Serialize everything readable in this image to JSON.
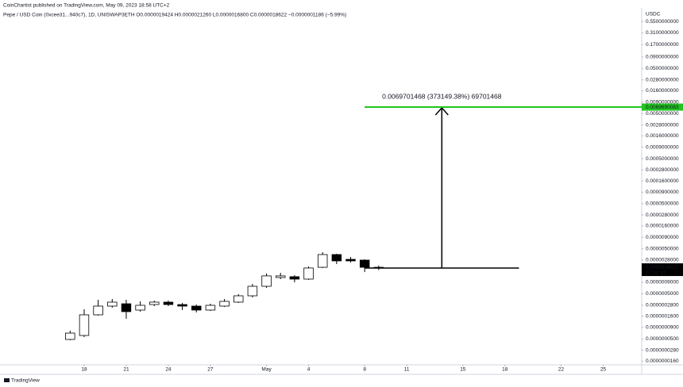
{
  "chart_data": {
    "type": "candlestick",
    "publisher_line": "CoinChartist published on TradingView.com, May 09, 2023 18:58 UTC+2",
    "title": "Pepe / USD Coin (0xcee31...940c7), 1D, UNISWAP3ETH  O0.0000019424 H0.0000021260 L0.0000016800 C0.0000018622 −0.0000001186 (−5.99%)",
    "currency": "USDC",
    "watermark": "TradingView",
    "log_scale": true,
    "up_color": "#ffffff",
    "down_color": "#000000",
    "x": [
      0,
      1,
      2,
      3,
      4,
      5,
      6,
      7,
      8,
      9,
      10,
      11,
      12,
      13,
      14,
      15,
      16,
      17,
      18,
      19,
      20,
      21,
      22
    ],
    "open": [
      4.86e-08,
      5.95e-08,
      1.71e-07,
      2.67e-07,
      3.01e-07,
      2.18e-07,
      2.89e-07,
      3.27e-07,
      2.89e-07,
      2.67e-07,
      2.18e-07,
      2.67e-07,
      3.27e-07,
      4.52e-07,
      7.35e-07,
      1.15e-06,
      1.2e-06,
      1.06e-06,
      1.94e-06,
      3.72e-06,
      2.91e-06,
      2.8e-06,
      1.9424e-06
    ],
    "high": [
      7.59e-08,
      2.27e-07,
      3.69e-07,
      3.84e-07,
      3.69e-07,
      3.4e-07,
      3.54e-07,
      3.54e-07,
      3.14e-07,
      2.89e-07,
      3.01e-07,
      3.84e-07,
      4.9e-07,
      8.3e-07,
      1.41e-06,
      1.46e-06,
      1.3e-06,
      2.02e-06,
      4.2e-06,
      3.87e-06,
      3.29e-06,
      2.91e-06,
      2.126e-06
    ],
    "low": [
      4.66e-08,
      5.49e-08,
      1.64e-07,
      2.46e-07,
      1.4e-07,
      2.01e-07,
      2.67e-07,
      2.67e-07,
      2.18e-07,
      1.93e-07,
      2.09e-07,
      2.56e-07,
      3.14e-07,
      4.17e-07,
      6.78e-07,
      1.06e-06,
      9e-07,
      1.02e-06,
      1.87e-06,
      2.29e-06,
      2.48e-06,
      1.52e-06,
      1.68e-06
    ],
    "close": [
      6.72e-08,
      1.71e-07,
      2.67e-07,
      3.27e-07,
      2.01e-07,
      2.78e-07,
      3.27e-07,
      2.89e-07,
      2.67e-07,
      2.18e-07,
      2.78e-07,
      3.4e-07,
      4.52e-07,
      7.35e-07,
      1.25e-06,
      1.25e-06,
      1.06e-06,
      1.87e-06,
      3.72e-06,
      2.69e-06,
      2.69e-06,
      1.94e-06,
      1.8622e-06
    ],
    "xlim": [
      -5,
      40.75
    ],
    "xticks": [
      {
        "value": 1,
        "label": "18"
      },
      {
        "value": 4,
        "label": "21"
      },
      {
        "value": 7,
        "label": "24"
      },
      {
        "value": 10,
        "label": "27"
      },
      {
        "value": 14,
        "label": "May"
      },
      {
        "value": 17,
        "label": "4"
      },
      {
        "value": 21,
        "label": "8"
      },
      {
        "value": 24,
        "label": "11"
      },
      {
        "value": 28,
        "label": "15"
      },
      {
        "value": 31,
        "label": "18"
      },
      {
        "value": 35,
        "label": "22"
      },
      {
        "value": 38,
        "label": "25"
      }
    ],
    "ylim": [
      1.33e-08,
      1.02
    ],
    "yticks": [
      {
        "value": 0.55,
        "label": "0.5500000000"
      },
      {
        "value": 0.31,
        "label": "0.3100000000"
      },
      {
        "value": 0.17,
        "label": "0.1700000000"
      },
      {
        "value": 0.09,
        "label": "0.0900000000"
      },
      {
        "value": 0.05,
        "label": "0.0500000000"
      },
      {
        "value": 0.028,
        "label": "0.0280000000"
      },
      {
        "value": 0.016,
        "label": "0.0160000000"
      },
      {
        "value": 0.009,
        "label": "0.0090000000"
      },
      {
        "value": 0.005,
        "label": "0.0050000000"
      },
      {
        "value": 0.0028,
        "label": "0.0028000000"
      },
      {
        "value": 0.0016,
        "label": "0.0016000000"
      },
      {
        "value": 0.0009,
        "label": "0.0009000000"
      },
      {
        "value": 0.0005,
        "label": "0.0005000000"
      },
      {
        "value": 0.00028,
        "label": "0.0002800000"
      },
      {
        "value": 0.00016,
        "label": "0.0001600000"
      },
      {
        "value": 9e-05,
        "label": "0.0000900000"
      },
      {
        "value": 5e-05,
        "label": "0.0000500000"
      },
      {
        "value": 2.8e-05,
        "label": "0.0000280000"
      },
      {
        "value": 1.6e-05,
        "label": "0.0000160000"
      },
      {
        "value": 9e-06,
        "label": "0.0000090000"
      },
      {
        "value": 5e-06,
        "label": "0.0000050000"
      },
      {
        "value": 2.8e-06,
        "label": "0.0000028000"
      },
      {
        "value": 9e-07,
        "label": "0.0000009000"
      },
      {
        "value": 5e-07,
        "label": "0.0000005000"
      },
      {
        "value": 2.8e-07,
        "label": "0.0000002800"
      },
      {
        "value": 1.6e-07,
        "label": "0.0000001600"
      },
      {
        "value": 9e-08,
        "label": "0.0000000900"
      },
      {
        "value": 5e-08,
        "label": "0.0000000500"
      },
      {
        "value": 2.8e-08,
        "label": "0.0000000280"
      },
      {
        "value": 1.6e-08,
        "label": "0.0000000160"
      }
    ],
    "last_price": {
      "value": 1.8622e-06,
      "label": "0.0000018622",
      "countdown": "07:01:37",
      "color": "#000000"
    },
    "target_line": {
      "value": 0.0069690083,
      "label": "0.0069690083",
      "color": "#22c322"
    },
    "measure_text": "0.0069701468 (373149.38%) 69701468"
  }
}
